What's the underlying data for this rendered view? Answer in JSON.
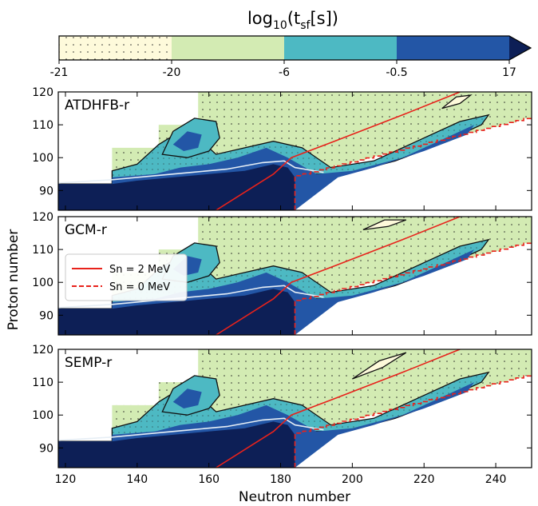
{
  "colorbar": {
    "title_main": "log",
    "title_sub": "10",
    "title_open": "(t",
    "title_subsf": "sf",
    "title_close": "[s])",
    "ticks": [
      "-21",
      "-20",
      "-6",
      "-0.5",
      "17"
    ]
  },
  "palette": {
    "level1": "#fefadb",
    "level2": "#d3ebb3",
    "level3": "#4db9c3",
    "level4": "#2356a6",
    "level5": "#0d1f56",
    "sn2": "#e8221b",
    "contour": "#111111",
    "boundary": "#e6eef5"
  },
  "axes": {
    "xlabel": "Neutron number",
    "ylabel": "Proton number",
    "xticks": [
      "120",
      "140",
      "160",
      "180",
      "200",
      "220",
      "240"
    ],
    "yticks": [
      "90",
      "100",
      "110",
      "120"
    ]
  },
  "legend": {
    "sn2": "Sn = 2 MeV",
    "sn0": "Sn = 0 MeV"
  },
  "chart_data": {
    "type": "heatmap",
    "quantity": "log10(tsf[s])",
    "color_levels": [
      -21,
      -20,
      -6,
      -0.5,
      17
    ],
    "xlabel": "Neutron number",
    "ylabel": "Proton number",
    "xlim": [
      118,
      250
    ],
    "ylim": [
      84,
      120
    ],
    "panels": [
      {
        "label": "ATDHFB-r",
        "region_min_z_by_n": [
          [
            118,
            92
          ],
          [
            133,
            92
          ],
          [
            134,
            103
          ],
          [
            146,
            103
          ],
          [
            147,
            110
          ],
          [
            157,
            110
          ],
          [
            158,
            120
          ],
          [
            250,
            120
          ]
        ],
        "neutron_drip_limit_by_z": [
          [
            184,
            84
          ],
          [
            184,
            94
          ],
          [
            196,
            95
          ],
          [
            214,
            100
          ],
          [
            224,
            107
          ],
          [
            236,
            115
          ],
          [
            248,
            120
          ]
        ],
        "sn2_line": [
          [
            162,
            84
          ],
          [
            178,
            95
          ],
          [
            183,
            100
          ],
          [
            195,
            105
          ],
          [
            214,
            113
          ],
          [
            230,
            120
          ]
        ],
        "high_halflife_island": [
          [
            225,
            115
          ],
          [
            233,
            119
          ]
        ]
      },
      {
        "label": "GCM-r",
        "region_min_z_by_n": [
          [
            118,
            92
          ],
          [
            133,
            92
          ],
          [
            134,
            103
          ],
          [
            146,
            103
          ],
          [
            147,
            110
          ],
          [
            157,
            110
          ],
          [
            158,
            120
          ],
          [
            250,
            120
          ]
        ],
        "neutron_drip_limit_by_z": [
          [
            184,
            84
          ],
          [
            184,
            94
          ],
          [
            196,
            95
          ],
          [
            214,
            100
          ],
          [
            224,
            107
          ],
          [
            236,
            115
          ],
          [
            248,
            120
          ]
        ],
        "sn2_line": [
          [
            162,
            84
          ],
          [
            178,
            95
          ],
          [
            183,
            100
          ],
          [
            195,
            105
          ],
          [
            214,
            113
          ],
          [
            230,
            120
          ]
        ],
        "high_halflife_island": [
          [
            203,
            116
          ],
          [
            215,
            119
          ]
        ]
      },
      {
        "label": "SEMP-r",
        "region_min_z_by_n": [
          [
            118,
            92
          ],
          [
            133,
            92
          ],
          [
            134,
            103
          ],
          [
            146,
            103
          ],
          [
            147,
            110
          ],
          [
            157,
            110
          ],
          [
            158,
            120
          ],
          [
            250,
            120
          ]
        ],
        "neutron_drip_limit_by_z": [
          [
            184,
            84
          ],
          [
            184,
            94
          ],
          [
            196,
            95
          ],
          [
            214,
            100
          ],
          [
            224,
            107
          ],
          [
            236,
            115
          ],
          [
            248,
            120
          ]
        ],
        "sn2_line": [
          [
            162,
            84
          ],
          [
            178,
            95
          ],
          [
            183,
            100
          ],
          [
            195,
            105
          ],
          [
            214,
            113
          ],
          [
            230,
            120
          ]
        ],
        "high_halflife_island": [
          [
            200,
            111
          ],
          [
            215,
            119
          ]
        ]
      }
    ]
  }
}
